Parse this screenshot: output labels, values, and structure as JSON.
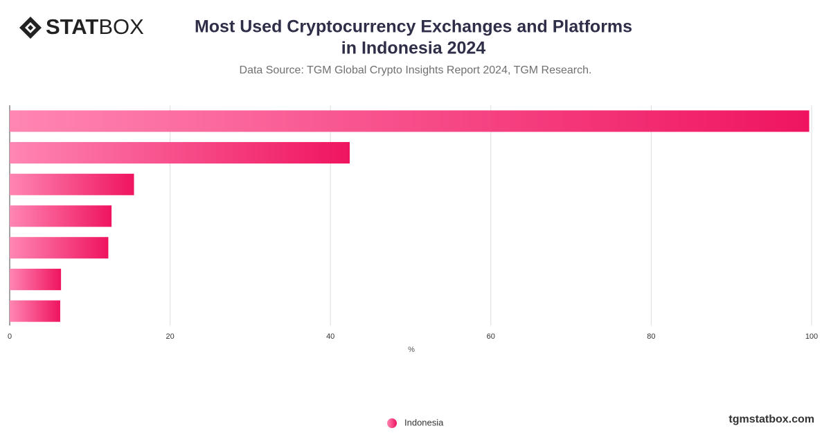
{
  "brand": {
    "bold": "STAT",
    "light": "BOX"
  },
  "site": "tgmstatbox.com",
  "chart_data": {
    "type": "bar",
    "orientation": "horizontal",
    "title": [
      "Most Used Cryptocurrency Exchanges and Platforms",
      "in Indonesia 2024"
    ],
    "subtitle": "Data Source: TGM Global Crypto Insights Report 2024, TGM Research.",
    "x_label": "%",
    "series": [
      {
        "name": "Indonesia",
        "color": "#ef1460",
        "gradient_start": "#ff86b3",
        "values": [
          99.7,
          42.4,
          15.5,
          12.7,
          12.3,
          6.4,
          6.3
        ]
      }
    ],
    "xlim": [
      0,
      100
    ],
    "xticks": [
      0,
      20,
      40,
      60,
      80,
      100
    ],
    "grid": true,
    "legend": "bottom"
  }
}
